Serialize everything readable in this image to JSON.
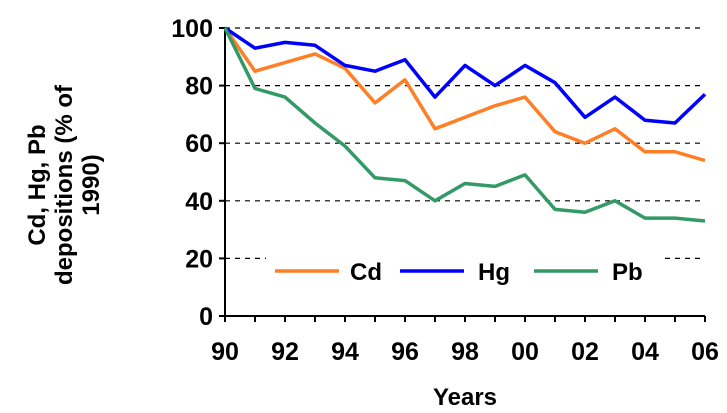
{
  "chart_data": {
    "type": "line",
    "title": "",
    "xlabel": "Years",
    "ylabel": [
      "Cd, Hg, Pb",
      "depositions (% of",
      "1990)"
    ],
    "x": [
      1990,
      1991,
      1992,
      1993,
      1994,
      1995,
      1996,
      1997,
      1998,
      1999,
      2000,
      2001,
      2002,
      2003,
      2004,
      2005,
      2006
    ],
    "xticks": [
      1990,
      1992,
      1994,
      1996,
      1998,
      2000,
      2002,
      2004,
      2006
    ],
    "xtick_labels": [
      "90",
      "92",
      "94",
      "96",
      "98",
      "00",
      "02",
      "04",
      "06"
    ],
    "xlim": [
      1990,
      2006
    ],
    "ylim": [
      0,
      100
    ],
    "yticks": [
      0,
      20,
      40,
      60,
      80,
      100
    ],
    "ytick_labels": [
      "0",
      "20",
      "40",
      "60",
      "80",
      "100"
    ],
    "grid": "horizontal dashed",
    "legend": "bottom, inside plot",
    "series": [
      {
        "name": "Cd",
        "color": "#ff7f27",
        "values": [
          100,
          85,
          88,
          91,
          86,
          74,
          82,
          65,
          69,
          73,
          76,
          64,
          60,
          65,
          57,
          57,
          54
        ]
      },
      {
        "name": "Hg",
        "color": "#0000ff",
        "values": [
          100,
          93,
          95,
          94,
          87,
          85,
          89,
          76,
          87,
          80,
          87,
          81,
          69,
          76,
          68,
          67,
          77
        ]
      },
      {
        "name": "Pb",
        "color": "#339966",
        "values": [
          100,
          79,
          76,
          67,
          59,
          48,
          47,
          40,
          46,
          45,
          49,
          37,
          36,
          40,
          34,
          34,
          33
        ]
      }
    ]
  }
}
